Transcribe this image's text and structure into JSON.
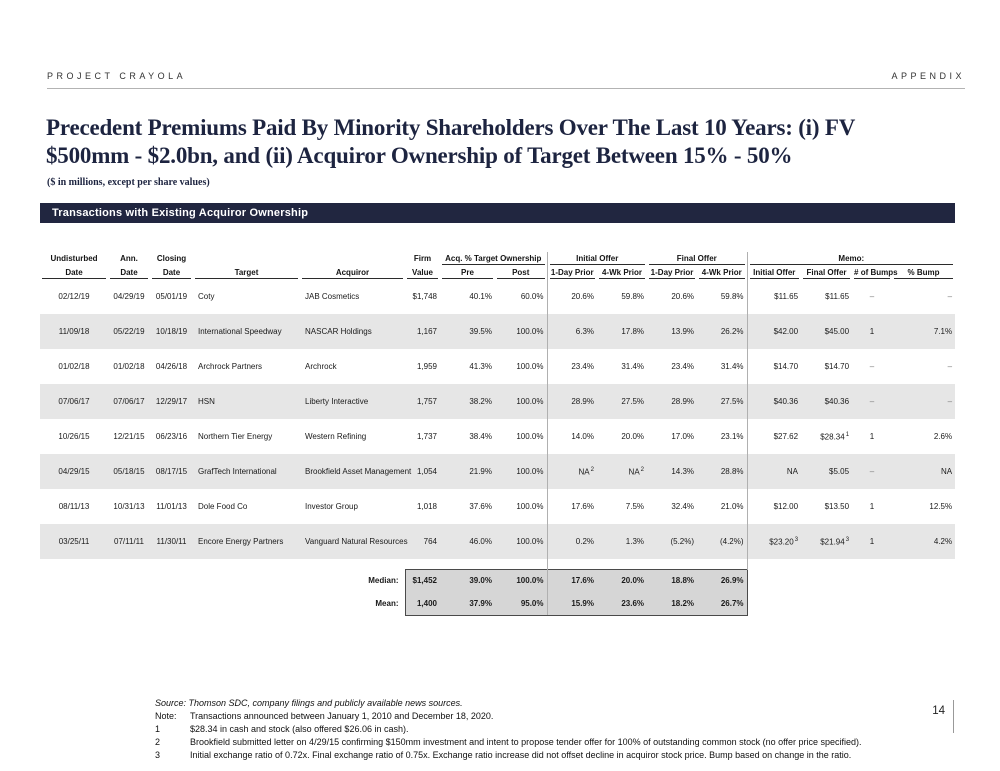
{
  "header": {
    "project": "PROJECT CRAYOLA",
    "section": "APPENDIX"
  },
  "title": {
    "line1": "Precedent Premiums Paid By Minority Shareholders Over The Last 10 Years: (i) FV",
    "line2": "$500mm - $2.0bn, and (ii) Acquiror Ownership of Target Between 15% - 50%",
    "subtitle": "($ in millions, except per share values)"
  },
  "section_bar": {
    "label": "Transactions with Existing Acquiror Ownership"
  },
  "colors": {
    "accent_navy": "#212640",
    "row_shade": "#e6e6e6",
    "summary_box_fill": "#d6d6d6",
    "title_navy": "#1d2440"
  },
  "table": {
    "group_headers": {
      "undisturbed": "Undisturbed",
      "ann": "Ann.",
      "closing": "Closing",
      "firm": "Firm",
      "acq_ownership": "Acq. % Target Ownership",
      "initial_offer": "Initial Offer",
      "final_offer": "Final Offer",
      "memo": "Memo:"
    },
    "col_headers": [
      "Date",
      "Date",
      "Date",
      "Target",
      "Acquiror",
      "Value",
      "Pre",
      "Post",
      "1-Day Prior",
      "4-Wk Prior",
      "1-Day Prior",
      "4-Wk Prior",
      "Initial Offer",
      "Final Offer",
      "# of Bumps",
      "% Bump"
    ],
    "col_keys": [
      "undisturbed-date",
      "ann-date",
      "closing-date",
      "target",
      "acquiror",
      "firm-value",
      "ownership-pre",
      "ownership-post",
      "initial-offer-1day-prior",
      "initial-offer-4wk-prior",
      "final-offer-1day-prior",
      "final-offer-4wk-prior",
      "memo-initial-offer",
      "memo-final-offer",
      "num-bumps",
      "pct-bump"
    ],
    "rows": [
      [
        "02/12/19",
        "04/29/19",
        "05/01/19",
        "Coty",
        "JAB Cosmetics",
        "$1,748",
        "40.1%",
        "60.0%",
        "20.6%",
        "59.8%",
        "20.6%",
        "59.8%",
        "$11.65",
        "$11.65",
        "–",
        "–"
      ],
      [
        "11/09/18",
        "05/22/19",
        "10/18/19",
        "International Speedway",
        "NASCAR Holdings",
        "1,167",
        "39.5%",
        "100.0%",
        "6.3%",
        "17.8%",
        "13.9%",
        "26.2%",
        "$42.00",
        "$45.00",
        "1",
        "7.1%"
      ],
      [
        "01/02/18",
        "01/02/18",
        "04/26/18",
        "Archrock Partners",
        "Archrock",
        "1,959",
        "41.3%",
        "100.0%",
        "23.4%",
        "31.4%",
        "23.4%",
        "31.4%",
        "$14.70",
        "$14.70",
        "–",
        "–"
      ],
      [
        "07/06/17",
        "07/06/17",
        "12/29/17",
        "HSN",
        "Liberty Interactive",
        "1,757",
        "38.2%",
        "100.0%",
        "28.9%",
        "27.5%",
        "28.9%",
        "27.5%",
        "$40.36",
        "$40.36",
        "–",
        "–"
      ],
      [
        "10/26/15",
        "12/21/15",
        "06/23/16",
        "Northern Tier Energy",
        "Western Refining",
        "1,737",
        "38.4%",
        "100.0%",
        "14.0%",
        "20.0%",
        "17.0%",
        "23.1%",
        "$27.62",
        "$28.34^1",
        "1",
        "2.6%"
      ],
      [
        "04/29/15",
        "05/18/15",
        "08/17/15",
        "GrafTech International",
        "Brookfield Asset Management",
        "1,054",
        "21.9%",
        "100.0%",
        "NA^2",
        "NA^2",
        "14.3%",
        "28.8%",
        "NA",
        "$5.05",
        "–",
        "NA"
      ],
      [
        "08/11/13",
        "10/31/13",
        "11/01/13",
        "Dole Food Co",
        "Investor Group",
        "1,018",
        "37.6%",
        "100.0%",
        "17.6%",
        "7.5%",
        "32.4%",
        "21.0%",
        "$12.00",
        "$13.50",
        "1",
        "12.5%"
      ],
      [
        "03/25/11",
        "07/11/11",
        "11/30/11",
        "Encore Energy Partners",
        "Vanguard Natural Resources",
        "764",
        "46.0%",
        "100.0%",
        "0.2%",
        "1.3%",
        "(5.2%)",
        "(4.2%)",
        "$23.20^3",
        "$21.94^3",
        "1",
        "4.2%"
      ]
    ],
    "median": {
      "label": "Median:",
      "values": [
        "$1,452",
        "39.0%",
        "100.0%",
        "17.6%",
        "20.0%",
        "18.8%",
        "26.9%"
      ]
    },
    "mean": {
      "label": "Mean:",
      "values": [
        "1,400",
        "37.9%",
        "95.0%",
        "15.9%",
        "23.6%",
        "18.2%",
        "26.7%"
      ]
    }
  },
  "footnotes": {
    "source": "Source: Thomson SDC, company filings and publicly available news sources.",
    "notes": [
      {
        "label": "Note:",
        "text": "Transactions announced between January 1, 2010 and December 18, 2020."
      },
      {
        "label": "1",
        "text": "$28.34 in cash and stock (also offered $26.06 in cash)."
      },
      {
        "label": "2",
        "text": "Brookfield submitted letter on 4/29/15 confirming $150mm investment and intent to propose tender offer for 100% of outstanding common stock (no offer price specified)."
      },
      {
        "label": "3",
        "text": "Initial exchange ratio of 0.72x. Final exchange ratio of 0.75x. Exchange ratio increase did not offset decline in acquiror stock price. Bump based on change in the ratio."
      }
    ]
  },
  "page_number": "14"
}
